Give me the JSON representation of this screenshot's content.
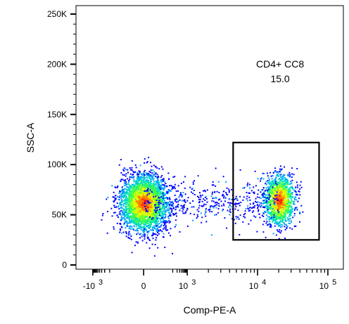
{
  "chart_data": {
    "type": "scatter",
    "plot_style": "flow-cytometry density dot plot",
    "xlabel": "Comp-PE-A",
    "ylabel": "SSC-A",
    "x_scale": "biexponential",
    "x_ticks": [
      {
        "value": -1000,
        "base": "-10",
        "exp": "3"
      },
      {
        "value": 0,
        "base": "0",
        "exp": ""
      },
      {
        "value": 1000,
        "base": "10",
        "exp": "3"
      },
      {
        "value": 10000,
        "base": "10",
        "exp": "4"
      },
      {
        "value": 100000,
        "base": "10",
        "exp": "5"
      }
    ],
    "y_ticks": [
      {
        "value": 0,
        "label": "0"
      },
      {
        "value": 50000,
        "label": "50K"
      },
      {
        "value": 100000,
        "label": "100K"
      },
      {
        "value": 150000,
        "label": "150K"
      },
      {
        "value": 200000,
        "label": "200K"
      },
      {
        "value": 250000,
        "label": "250K"
      }
    ],
    "ylim": [
      0,
      262144
    ],
    "populations": [
      {
        "center_x": 0,
        "center_ssc": 62000,
        "spread_x_fraction": 0.045,
        "spread_ssc": 14000,
        "count": 3200,
        "peak_color": "#e8201a"
      },
      {
        "center_x": 20000,
        "center_ssc": 65000,
        "spread_x_fraction": 0.03,
        "spread_ssc": 13000,
        "count": 1300,
        "peak_color": "#20c8b0"
      }
    ],
    "gate": {
      "name": "CD4+ CC8",
      "percent": "15.0",
      "x_range": [
        4500,
        75000
      ],
      "ssc_range": [
        25000,
        122000
      ]
    },
    "density_colors": [
      "#0000ff",
      "#00a0ff",
      "#00e0c0",
      "#40ff40",
      "#e0ff00",
      "#ff8000",
      "#ff0000"
    ],
    "grid": false,
    "legend": "none"
  }
}
